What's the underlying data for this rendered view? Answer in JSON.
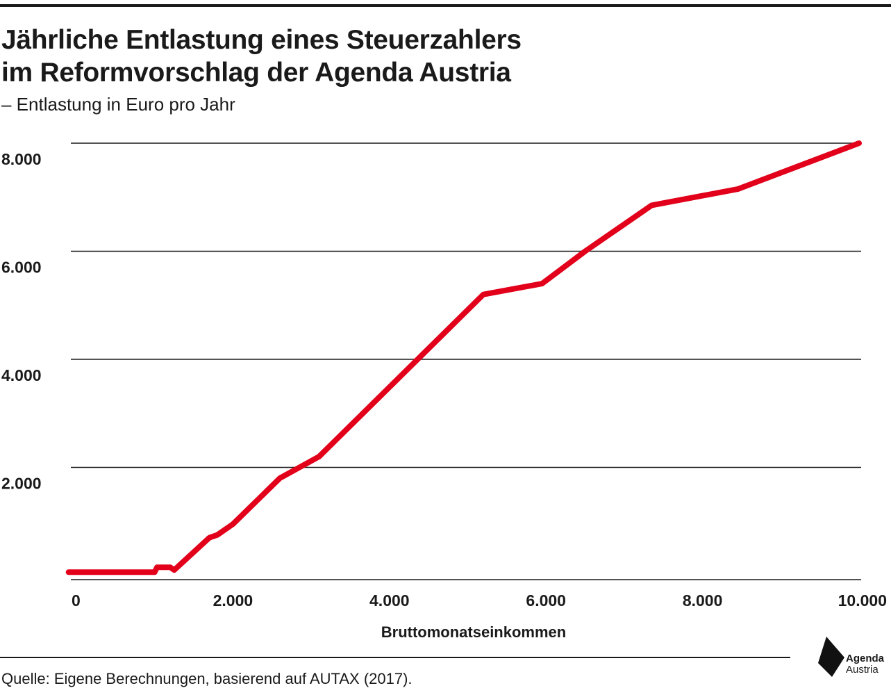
{
  "header": {
    "title_line1": "Jährliche Entlastung eines Steuerzahlers",
    "title_line2": "im Reformvorschlag der Agenda Austria",
    "subtitle": "– Entlastung in Euro pro Jahr"
  },
  "footer": {
    "source": "Quelle: Eigene Berechnungen, basierend auf AUTAX (2017).",
    "logo_line1": "Agenda",
    "logo_line2": "Austria"
  },
  "colors": {
    "line": "#e2001a",
    "text": "#1a1a1a",
    "grid": "#1a1a1a"
  },
  "chart_data": {
    "type": "line",
    "title": "Jährliche Entlastung eines Steuerzahlers im Reformvorschlag der Agenda Austria",
    "subtitle": "– Entlastung in Euro pro Jahr",
    "xlabel": "Bruttomonatseinkommen",
    "ylabel": "",
    "xlim": [
      0,
      10000
    ],
    "ylim": [
      0,
      8000
    ],
    "x_ticks": [
      0,
      2000,
      4000,
      6000,
      8000,
      10000
    ],
    "x_tick_labels": [
      "0",
      "2.000",
      "4.000",
      "6.000",
      "8.000",
      "10.000"
    ],
    "y_ticks": [
      2000,
      4000,
      6000,
      8000
    ],
    "y_tick_labels": [
      "2.000",
      "4.000",
      "6.000",
      "8.000"
    ],
    "grid": "horizontal",
    "legend": "none",
    "series": [
      {
        "points": [
          {
            "x": -100,
            "y": 60
          },
          {
            "x": 1000,
            "y": 60
          },
          {
            "x": 1030,
            "y": 150
          },
          {
            "x": 1200,
            "y": 150
          },
          {
            "x": 1250,
            "y": 100
          },
          {
            "x": 1700,
            "y": 700
          },
          {
            "x": 1800,
            "y": 750
          },
          {
            "x": 1850,
            "y": 800
          },
          {
            "x": 1950,
            "y": 900
          },
          {
            "x": 2000,
            "y": 950
          },
          {
            "x": 2600,
            "y": 1800
          },
          {
            "x": 3100,
            "y": 2200
          },
          {
            "x": 5200,
            "y": 5200
          },
          {
            "x": 5950,
            "y": 5400
          },
          {
            "x": 6500,
            "y": 6000
          },
          {
            "x": 7350,
            "y": 6850
          },
          {
            "x": 8450,
            "y": 7150
          },
          {
            "x": 10000,
            "y": 8000
          }
        ]
      }
    ]
  }
}
